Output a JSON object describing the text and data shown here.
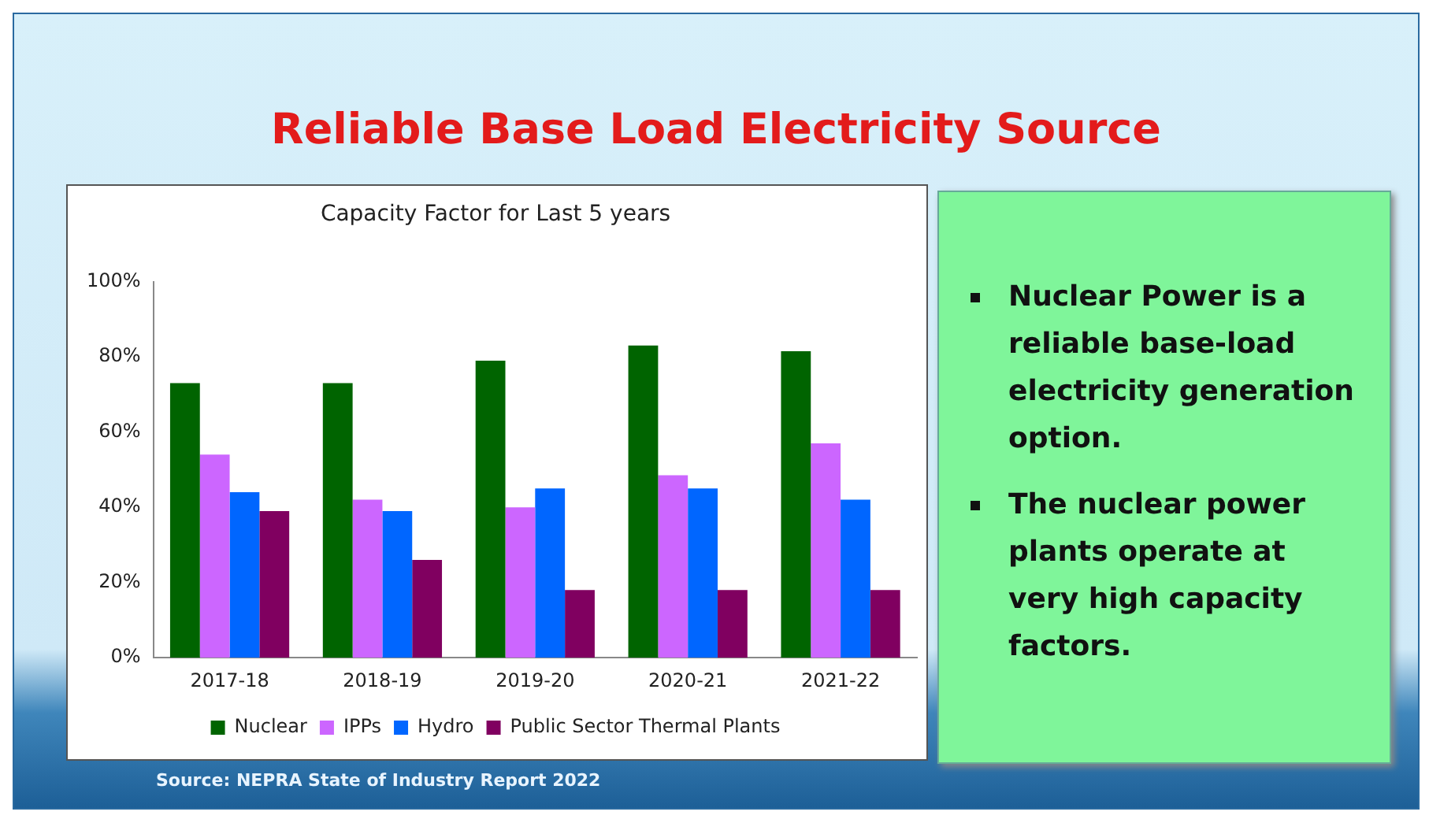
{
  "chart_data": {
    "type": "bar",
    "title": "Reliable Base Load Electricity Source",
    "subtitle": "Capacity Factor for Last 5 years",
    "categories": [
      "2017-18",
      "2018-19",
      "2019-20",
      "2020-21",
      "2021-22"
    ],
    "series": [
      {
        "name": "Nuclear",
        "color": "#006400",
        "values": [
          73,
          73,
          79,
          83,
          81.5
        ]
      },
      {
        "name": "IPPs",
        "color": "#cc66ff",
        "values": [
          54,
          42,
          40,
          48.5,
          57
        ]
      },
      {
        "name": "Hydro",
        "color": "#0066ff",
        "values": [
          44,
          39,
          45,
          45,
          42
        ]
      },
      {
        "name": "Public Sector Thermal Plants",
        "color": "#800060",
        "values": [
          39,
          26,
          18,
          18,
          18
        ]
      }
    ],
    "ylim": [
      0,
      100
    ],
    "yticks": [
      {
        "value": 0,
        "label": "0%"
      },
      {
        "value": 20,
        "label": "20%"
      },
      {
        "value": 40,
        "label": "40%"
      },
      {
        "value": 60,
        "label": "60%"
      },
      {
        "value": 80,
        "label": "80%"
      },
      {
        "value": 100,
        "label": "100%"
      }
    ],
    "grid": false,
    "legend": "bottom",
    "annotations": [
      "Nuclear Power is a reliable base-load electricity generation option.",
      "The nuclear power plants operate at very high capacity factors.",
      "Source: NEPRA State of Industry Report 2022"
    ]
  }
}
